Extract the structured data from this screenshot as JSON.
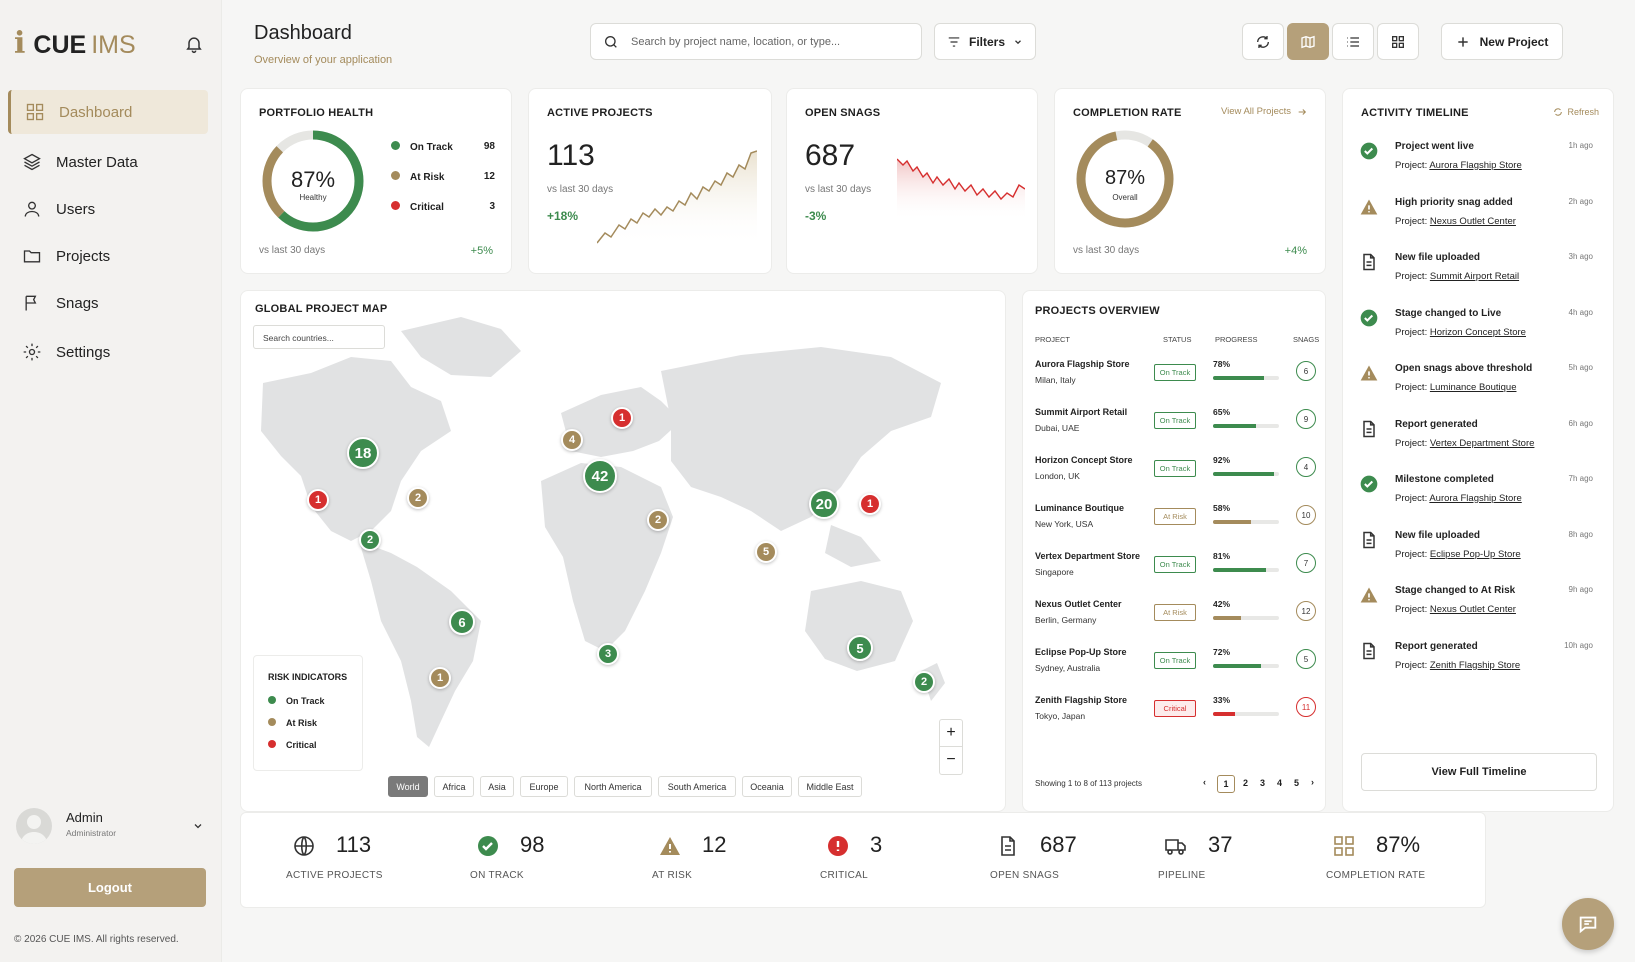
{
  "brand": {
    "prefix": "i",
    "name": "CUE",
    "suffix": "IMS"
  },
  "sidebar": {
    "items": [
      {
        "label": "Dashboard",
        "icon": "grid-icon"
      },
      {
        "label": "Master Data",
        "icon": "layers-icon"
      },
      {
        "label": "Users",
        "icon": "user-icon"
      },
      {
        "label": "Projects",
        "icon": "folder-icon"
      },
      {
        "label": "Snags",
        "icon": "flag-icon"
      },
      {
        "label": "Settings",
        "icon": "gear-icon"
      }
    ],
    "user": {
      "name": "Admin",
      "role": "Administrator"
    },
    "logout": "Logout",
    "copyright": "© 2026 CUE IMS. All rights reserved."
  },
  "header": {
    "title": "Dashboard",
    "subtitle": "Overview of your application",
    "search_placeholder": "Search by project name, location, or type...",
    "filters": "Filters",
    "new_project": "New Project"
  },
  "portfolio": {
    "title": "PORTFOLIO HEALTH",
    "percent": "87%",
    "percent_label": "Healthy",
    "legend": [
      {
        "label": "On Track",
        "value": "98",
        "color": "#3d8b4e"
      },
      {
        "label": "At Risk",
        "value": "12",
        "color": "#a48b5c"
      },
      {
        "label": "Critical",
        "value": "3",
        "color": "#d62f2f"
      }
    ],
    "footer": "vs last 30 days",
    "delta": "+5%"
  },
  "active": {
    "title": "ACTIVE PROJECTS",
    "value": "113",
    "footer": "vs last 30 days",
    "delta": "+18%"
  },
  "snags": {
    "title": "OPEN SNAGS",
    "value": "687",
    "footer": "vs last 30 days",
    "delta": "-3%"
  },
  "completion": {
    "title": "COMPLETION RATE",
    "link": "View All Projects",
    "percent": "87%",
    "percent_label": "Overall",
    "fraction": 0.87,
    "footer": "vs last 30 days",
    "delta": "+4%"
  },
  "map": {
    "title": "GLOBAL PROJECT MAP",
    "search_placeholder": "Search countries...",
    "risk_title": "RISK INDICATORS",
    "risk": [
      {
        "label": "On Track",
        "color": "#3d8b4e"
      },
      {
        "label": "At Risk",
        "color": "#a48b5c"
      },
      {
        "label": "Critical",
        "color": "#d62f2f"
      }
    ],
    "chips": [
      "World",
      "Africa",
      "Asia",
      "Europe",
      "North America",
      "South America",
      "Oceania",
      "Middle East"
    ],
    "markers": [
      "18",
      "1",
      "2",
      "2",
      "6",
      "1",
      "1",
      "4",
      "42",
      "2",
      "3",
      "20",
      "1",
      "5",
      "5",
      "2"
    ],
    "zoom_in": "+",
    "zoom_out": "−"
  },
  "overview": {
    "title": "PROJECTS OVERVIEW",
    "cols": [
      "PROJECT",
      "STATUS",
      "PROGRESS",
      "SNAGS"
    ],
    "rows": [
      {
        "name": "Aurora Flagship Store",
        "loc": "Milan, Italy",
        "status": "On Track",
        "progress": "78%",
        "snags": "6"
      },
      {
        "name": "Summit Airport Retail",
        "loc": "Dubai, UAE",
        "status": "On Track",
        "progress": "65%",
        "snags": "9"
      },
      {
        "name": "Horizon Concept Store",
        "loc": "London, UK",
        "status": "On Track",
        "progress": "92%",
        "snags": "4"
      },
      {
        "name": "Luminance Boutique",
        "loc": "New York, USA",
        "status": "At Risk",
        "progress": "58%",
        "snags": "10"
      },
      {
        "name": "Vertex Department Store",
        "loc": "Singapore",
        "status": "On Track",
        "progress": "81%",
        "snags": "7"
      },
      {
        "name": "Nexus Outlet Center",
        "loc": "Berlin, Germany",
        "status": "At Risk",
        "progress": "42%",
        "snags": "12"
      },
      {
        "name": "Eclipse Pop-Up Store",
        "loc": "Sydney, Australia",
        "status": "On Track",
        "progress": "72%",
        "snags": "5"
      },
      {
        "name": "Zenith Flagship Store",
        "loc": "Tokyo, Japan",
        "status": "Critical",
        "progress": "33%",
        "snags": "11"
      }
    ],
    "showing": "Showing 1 to 8 of 113 projects",
    "pages": [
      "1",
      "2",
      "3",
      "4",
      "5"
    ]
  },
  "timeline": {
    "title": "ACTIVITY TIMELINE",
    "refresh": "Refresh",
    "items": [
      {
        "type": "check",
        "title": "Project went live",
        "project": "Aurora Flagship Store",
        "time": "1h ago"
      },
      {
        "type": "warn",
        "title": "High priority snag added",
        "project": "Nexus Outlet Center",
        "time": "2h ago"
      },
      {
        "type": "file",
        "title": "New file uploaded",
        "project": "Summit Airport Retail",
        "time": "3h ago"
      },
      {
        "type": "check",
        "title": "Stage changed to Live",
        "project": "Horizon Concept Store",
        "time": "4h ago"
      },
      {
        "type": "warn",
        "title": "Open snags above threshold",
        "project": "Luminance Boutique",
        "time": "5h ago"
      },
      {
        "type": "file",
        "title": "Report generated",
        "project": "Vertex Department Store",
        "time": "6h ago"
      },
      {
        "type": "check",
        "title": "Milestone completed",
        "project": "Aurora Flagship Store",
        "time": "7h ago"
      },
      {
        "type": "file",
        "title": "New file uploaded",
        "project": "Eclipse Pop-Up Store",
        "time": "8h ago"
      },
      {
        "type": "warn",
        "title": "Stage changed to At Risk",
        "project": "Nexus Outlet Center",
        "time": "9h ago"
      },
      {
        "type": "file",
        "title": "Report generated",
        "project": "Zenith Flagship Store",
        "time": "10h ago"
      }
    ],
    "project_prefix": "Project:",
    "view_full": "View Full Timeline"
  },
  "stats": [
    {
      "value": "113",
      "label": "ACTIVE PROJECTS",
      "icon": "globe-icon"
    },
    {
      "value": "98",
      "label": "ON TRACK",
      "icon": "check-circle-icon"
    },
    {
      "value": "12",
      "label": "AT RISK",
      "icon": "warning-icon"
    },
    {
      "value": "3",
      "label": "CRITICAL",
      "icon": "alert-icon"
    },
    {
      "value": "687",
      "label": "OPEN SNAGS",
      "icon": "document-icon"
    },
    {
      "value": "37",
      "label": "PIPELINE",
      "icon": "truck-icon"
    },
    {
      "value": "87%",
      "label": "COMPLETION RATE",
      "icon": "grid-icon"
    }
  ]
}
